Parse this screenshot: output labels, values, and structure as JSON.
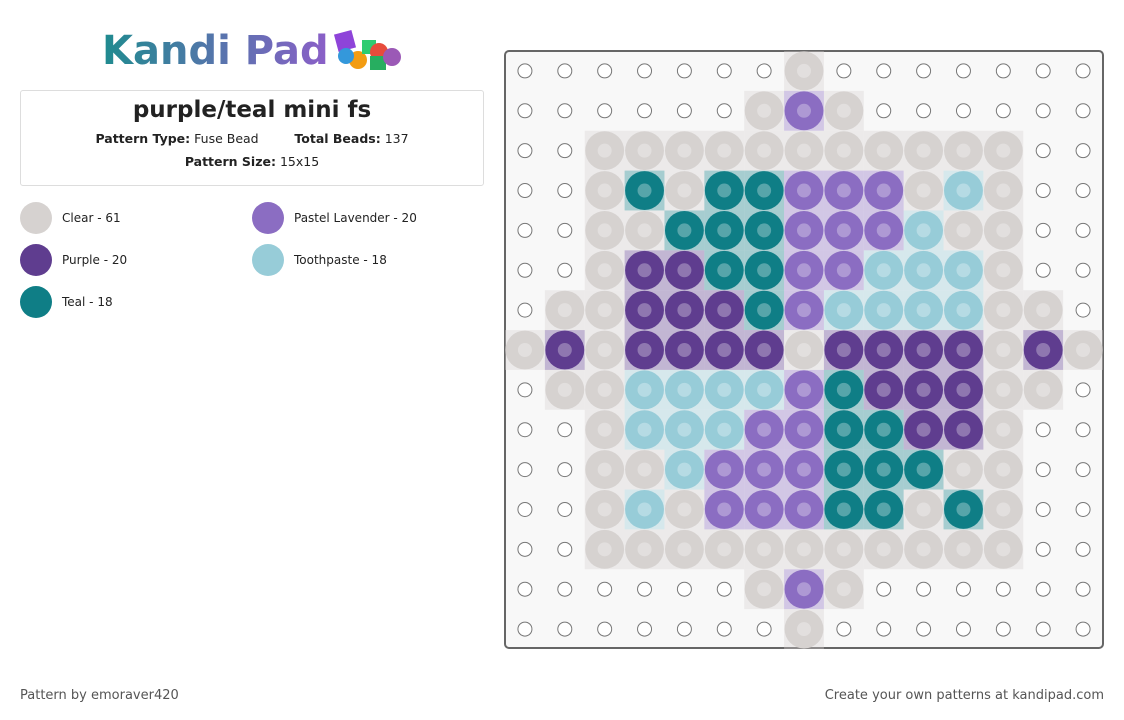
{
  "logo": {
    "text": "Kandi Pad"
  },
  "pattern": {
    "title": "purple/teal mini fs",
    "type_label": "Pattern Type:",
    "type_value": "Fuse Bead",
    "total_label": "Total Beads:",
    "total_value": "137",
    "size_label": "Pattern Size:",
    "size_value": "15x15"
  },
  "legend": [
    {
      "code": "C",
      "label": "Clear - 61",
      "color": "#d6d2d0"
    },
    {
      "code": "L",
      "label": "Pastel Lavender - 20",
      "color": "#8b6dc2"
    },
    {
      "code": "P",
      "label": "Purple - 20",
      "color": "#5f3d8f"
    },
    {
      "code": "S",
      "label": "Toothpaste - 18",
      "color": "#97ccd8"
    },
    {
      "code": "T",
      "label": "Teal - 18",
      "color": "#0f7e86"
    }
  ],
  "grid": [
    ".......C.......",
    "......CLC......",
    "..CCCCCCCCCCC..",
    "..CTCTTLLLCSC..",
    "..CCTTTLLLSCC..",
    "..CPPTTLLSSSC..",
    ".CCPPPTLSSSSCC.",
    "CPCPPPPCPPPPCPC",
    ".CCSSSSLTPPPCC.",
    "..CSSSLLTTPPC..",
    "..CCSLLLTTTCC..",
    "..CSCLLLTTCTC..",
    "..CCCCCCCCCCC..",
    "......CLC......",
    ".......C......."
  ],
  "footer": {
    "left": "Pattern by emoraver420",
    "right": "Create your own patterns at kandipad.com"
  }
}
